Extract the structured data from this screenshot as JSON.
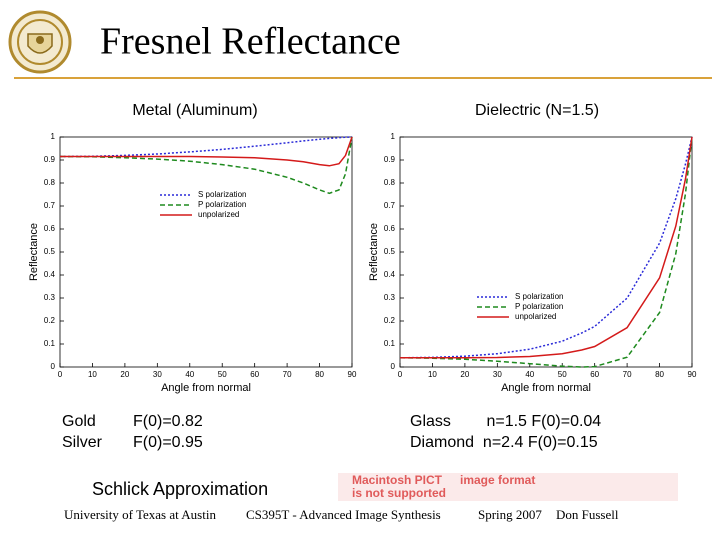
{
  "header": {
    "title": "Fresnel Reflectance"
  },
  "chart_data": [
    {
      "type": "line",
      "title": "Metal (Aluminum)",
      "x_label": "Angle from normal",
      "y_label": "Reflectance",
      "x": [
        0,
        10,
        20,
        30,
        40,
        50,
        60,
        70,
        75,
        80,
        83,
        86,
        88,
        90
      ],
      "series": [
        {
          "name": "S polarization",
          "color": "#2a2ad8",
          "style": "dotted",
          "values": [
            0.915,
            0.916,
            0.92,
            0.926,
            0.935,
            0.946,
            0.96,
            0.975,
            0.983,
            0.99,
            0.994,
            0.997,
            0.999,
            1
          ]
        },
        {
          "name": "P polarization",
          "color": "#1e8a1e",
          "style": "dashed",
          "values": [
            0.915,
            0.914,
            0.91,
            0.904,
            0.895,
            0.88,
            0.86,
            0.825,
            0.8,
            0.77,
            0.755,
            0.77,
            0.84,
            1
          ]
        },
        {
          "name": "unpolarized",
          "color": "#d41a1a",
          "style": "solid",
          "values": [
            0.915,
            0.915,
            0.915,
            0.915,
            0.915,
            0.913,
            0.91,
            0.9,
            0.892,
            0.88,
            0.875,
            0.884,
            0.92,
            1
          ]
        }
      ],
      "xlim": [
        0,
        90
      ],
      "ylim": [
        0,
        1
      ],
      "xticks": [
        0,
        10,
        20,
        30,
        40,
        50,
        60,
        70,
        80,
        90
      ],
      "yticks": [
        0,
        0.1,
        0.2,
        0.3,
        0.4,
        0.5,
        0.6,
        0.7,
        0.8,
        0.9,
        1
      ],
      "legend": "center"
    },
    {
      "type": "line",
      "title": "Dielectric (N=1.5)",
      "x_label": "Angle from normal",
      "y_label": "Reflectance",
      "x": [
        0,
        10,
        20,
        30,
        40,
        50,
        56,
        60,
        70,
        80,
        85,
        88,
        90
      ],
      "series": [
        {
          "name": "S polarization",
          "color": "#2a2ad8",
          "style": "dotted",
          "values": [
            0.04,
            0.0417,
            0.0471,
            0.0578,
            0.0772,
            0.1121,
            0.148,
            0.1766,
            0.2996,
            0.5387,
            0.7322,
            0.8827,
            1
          ]
        },
        {
          "name": "P polarization",
          "color": "#1e8a1e",
          "style": "dashed",
          "values": [
            0.04,
            0.0384,
            0.0334,
            0.0252,
            0.0143,
            0.0033,
            0,
            0.0018,
            0.0425,
            0.2369,
            0.4931,
            0.7546,
            1
          ]
        },
        {
          "name": "unpolarized",
          "color": "#d41a1a",
          "style": "solid",
          "values": [
            0.04,
            0.04,
            0.0403,
            0.0415,
            0.0458,
            0.0577,
            0.074,
            0.0892,
            0.171,
            0.3878,
            0.6127,
            0.8187,
            1
          ]
        }
      ],
      "xlim": [
        0,
        90
      ],
      "ylim": [
        0,
        1
      ],
      "xticks": [
        0,
        10,
        20,
        30,
        40,
        50,
        60,
        70,
        80,
        90
      ],
      "yticks": [
        0,
        0.1,
        0.2,
        0.3,
        0.4,
        0.5,
        0.6,
        0.7,
        0.8,
        0.9,
        1
      ],
      "legend": "lower right"
    }
  ],
  "metals": [
    [
      "Gold",
      "F(0)=0.82"
    ],
    [
      "Silver",
      "F(0)=0.95"
    ]
  ],
  "dielectrics": [
    "Glass        n=1.5 F(0)=0.04",
    "Diamond  n=2.4 F(0)=0.15"
  ],
  "approximation": "Schlick Approximation",
  "broken_image": [
    "Macintosh PICT",
    "image format",
    "is not supported"
  ],
  "footer": [
    "University of Texas at Austin",
    "CS395T - Advanced Image Synthesis",
    "Spring 2007",
    "Don Fussell"
  ]
}
